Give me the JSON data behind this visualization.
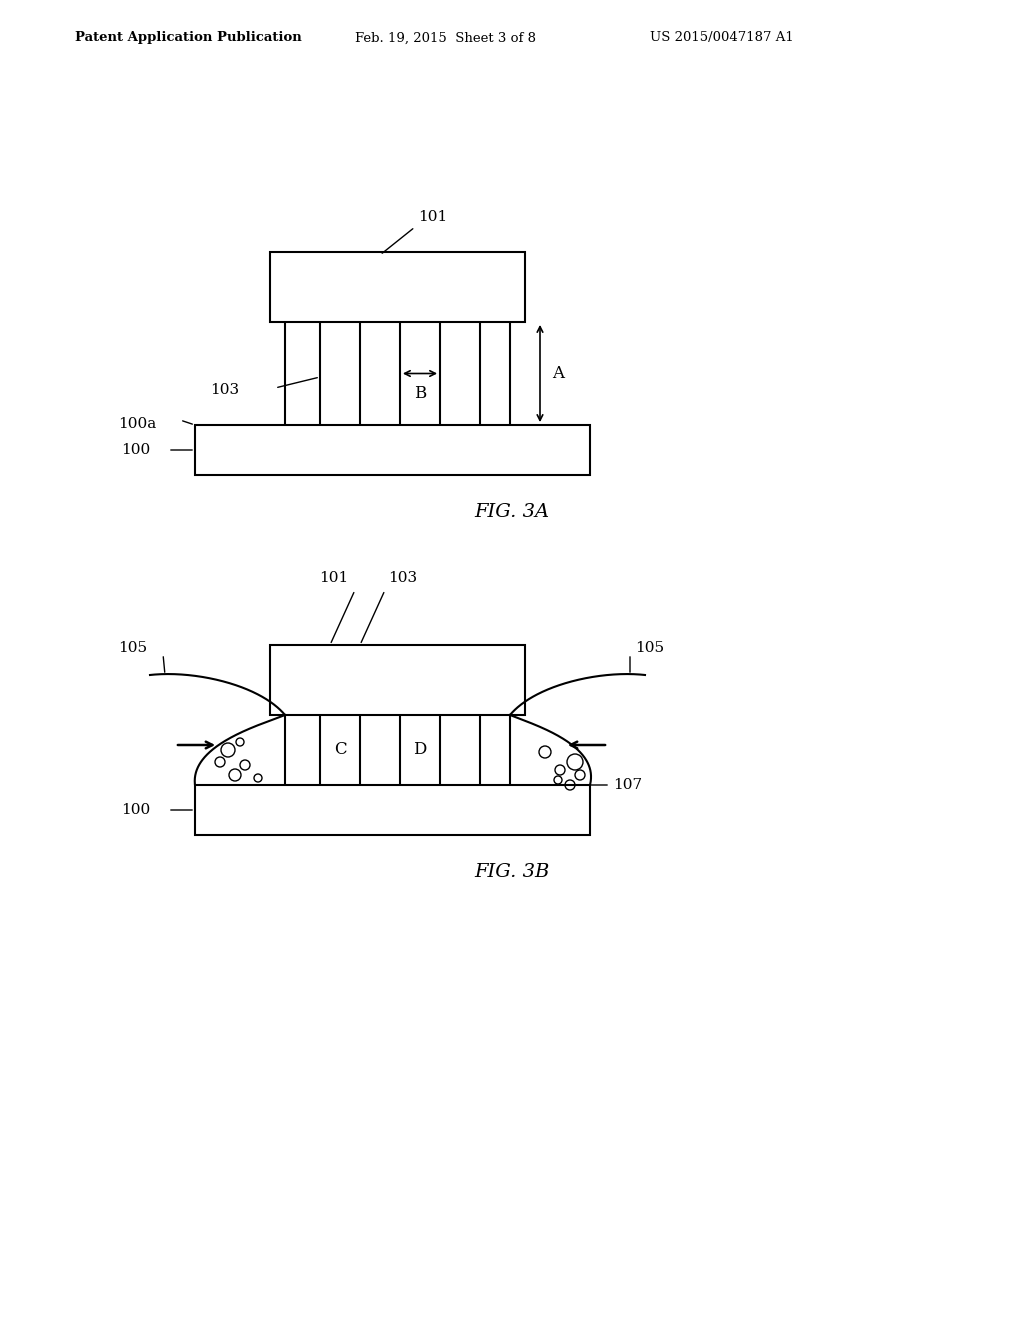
{
  "bg_color": "#ffffff",
  "line_color": "#000000",
  "fig_width": 10.24,
  "fig_height": 13.2,
  "header_text": "Patent Application Publication",
  "header_date": "Feb. 19, 2015  Sheet 3 of 8",
  "header_patent": "US 2015/0047187 A1",
  "fig3a_label": "FIG. 3A",
  "fig3b_label": "FIG. 3B",
  "labels": {
    "101_3a": "101",
    "103_3a": "103",
    "100a_3a": "100a",
    "100_3a": "100",
    "A_3a": "A",
    "B_3a": "B",
    "101_3b": "101",
    "103_3b": "103",
    "105_left": "105",
    "105_right": "105",
    "100_3b": "100",
    "107": "107",
    "C": "C",
    "D": "D"
  }
}
